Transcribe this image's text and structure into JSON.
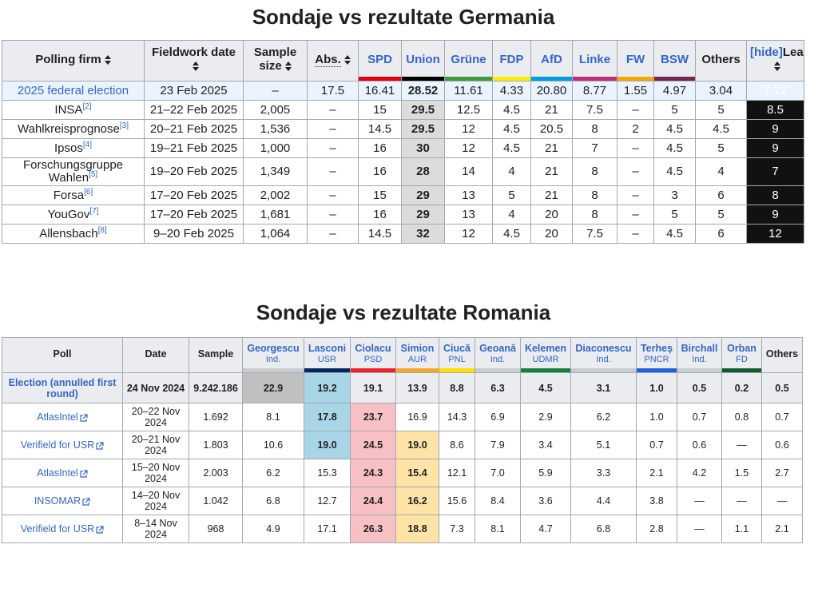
{
  "germany": {
    "title": "Sondaje vs rezultate Germania",
    "columns": [
      {
        "label": "Polling firm",
        "sortable": true
      },
      {
        "label": "Fieldwork date",
        "sortable": true
      },
      {
        "label": "Sample size",
        "sortable": true
      },
      {
        "label": "Abs.",
        "sortable": true
      },
      {
        "label": "SPD",
        "color": "#E3000F"
      },
      {
        "label": "Union",
        "color": "#000000"
      },
      {
        "label": "Grüne",
        "color": "#409A3C"
      },
      {
        "label": "FDP",
        "color": "#FFED00"
      },
      {
        "label": "AfD",
        "color": "#009EE0"
      },
      {
        "label": "Linke",
        "color": "#BE3075"
      },
      {
        "label": "FW",
        "color": "#F7A800"
      },
      {
        "label": "BSW",
        "color": "#792351"
      },
      {
        "label": "Others"
      },
      {
        "label": "Lead",
        "toggle": "[hide]",
        "sortable": true
      }
    ],
    "rows": [
      {
        "firm": "2025 federal election",
        "cells": [
          "23 Feb 2025",
          "–",
          "17.5",
          "16.41",
          "28.52",
          "11.61",
          "4.33",
          "20.80",
          "8.77",
          "1.55",
          "4.97",
          "3.04",
          "7.72"
        ]
      },
      {
        "firm": "INSA",
        "ref": "[2]",
        "cells": [
          "21–22 Feb 2025",
          "2,005",
          "–",
          "15",
          "29.5",
          "12.5",
          "4.5",
          "21",
          "7.5",
          "–",
          "5",
          "5",
          "8.5"
        ]
      },
      {
        "firm": "Wahlkreisprognose",
        "ref": "[3]",
        "cells": [
          "20–21 Feb 2025",
          "1,536",
          "–",
          "14.5",
          "29.5",
          "12",
          "4.5",
          "20.5",
          "8",
          "2",
          "4.5",
          "4.5",
          "9"
        ]
      },
      {
        "firm": "Ipsos",
        "ref": "[4]",
        "cells": [
          "19–21 Feb 2025",
          "1,000",
          "–",
          "16",
          "30",
          "12",
          "4.5",
          "21",
          "7",
          "–",
          "4.5",
          "5",
          "9"
        ]
      },
      {
        "firm": "Forschungsgruppe Wahlen",
        "ref": "[5]",
        "cells": [
          "19–20 Feb 2025",
          "1,349",
          "–",
          "16",
          "28",
          "14",
          "4",
          "21",
          "8",
          "–",
          "4.5",
          "4",
          "7"
        ]
      },
      {
        "firm": "Forsa",
        "ref": "[6]",
        "cells": [
          "17–20 Feb 2025",
          "2,002",
          "–",
          "15",
          "29",
          "13",
          "5",
          "21",
          "8",
          "–",
          "3",
          "6",
          "8"
        ]
      },
      {
        "firm": "YouGov",
        "ref": "[7]",
        "cells": [
          "17–20 Feb 2025",
          "1,681",
          "–",
          "16",
          "29",
          "13",
          "4",
          "20",
          "8",
          "–",
          "5",
          "5",
          "9"
        ]
      },
      {
        "firm": "Allensbach",
        "ref": "[8]",
        "cells": [
          "9–20 Feb 2025",
          "1,064",
          "–",
          "14.5",
          "32",
          "12",
          "4.5",
          "20",
          "7.5",
          "–",
          "4.5",
          "6",
          "12"
        ]
      }
    ]
  },
  "romania": {
    "title": "Sondaje vs rezultate Romania",
    "columns": [
      {
        "name": "Poll"
      },
      {
        "name": "Date"
      },
      {
        "name": "Sample"
      },
      {
        "name": "Georgescu",
        "party": "Ind.",
        "color": "#c8ccd1"
      },
      {
        "name": "Lasconi",
        "party": "USR",
        "color": "#00285e"
      },
      {
        "name": "Ciolacu",
        "party": "PSD",
        "color": "#ED2128"
      },
      {
        "name": "Simion",
        "party": "AUR",
        "color": "#F4A82A"
      },
      {
        "name": "Ciucă",
        "party": "PNL",
        "color": "#FFDD00"
      },
      {
        "name": "Geoană",
        "party": "Ind.",
        "color": "#c8ccd1"
      },
      {
        "name": "Kelemen",
        "party": "UDMR",
        "color": "#15803C"
      },
      {
        "name": "Diaconescu",
        "party": "Ind.",
        "color": "#c8ccd1"
      },
      {
        "name": "Terheș",
        "party": "PNCR",
        "color": "#1f5fe0"
      },
      {
        "name": "Birchall",
        "party": "Ind.",
        "color": "#c8ccd1"
      },
      {
        "name": "Orban",
        "party": "FD",
        "color": "#0d5c2b"
      },
      {
        "name": "Others"
      }
    ],
    "rows": [
      {
        "poll": "Election (annulled first round)",
        "cells": [
          "24 Nov 2024",
          "9.242.186",
          {
            "text": "22.9",
            "color": "#c0c0c0"
          },
          {
            "text": "19.2",
            "color": "#a9d6e6"
          },
          "19.1",
          "13.9",
          "8.8",
          "6.3",
          "4.5",
          "3.1",
          "1.0",
          "0.5",
          "0.2",
          "0.5"
        ]
      },
      {
        "poll": "AtlasIntel",
        "cells": [
          "20–22 Nov 2024",
          "1.692",
          "8.1",
          {
            "text": "17.8",
            "color": "#a9d6e6"
          },
          {
            "text": "23.7",
            "color": "#f6c0c4"
          },
          "16.9",
          "14.3",
          "6.9",
          "2.9",
          "6.2",
          "1.0",
          "0.7",
          "0.8",
          "0.7"
        ]
      },
      {
        "poll": "Verifield for USR",
        "cells": [
          "20–21 Nov 2024",
          "1.803",
          "10.6",
          {
            "text": "19.0",
            "color": "#a9d6e6"
          },
          {
            "text": "24.5",
            "color": "#f6c0c4"
          },
          {
            "text": "19.0",
            "color": "#fde3a5"
          },
          "8.6",
          "7.9",
          "3.4",
          "5.1",
          "0.7",
          "0.6",
          "—",
          "0.6"
        ]
      },
      {
        "poll": "AtlasIntel",
        "cells": [
          "15–20 Nov 2024",
          "2.003",
          "6.2",
          "15.3",
          {
            "text": "24.3",
            "color": "#f6c0c4"
          },
          {
            "text": "15.4",
            "color": "#fde3a5"
          },
          "12.1",
          "7.0",
          "5.9",
          "3.3",
          "2.1",
          "4.2",
          "1.5",
          "2.7"
        ]
      },
      {
        "poll": "INSOMAR",
        "cells": [
          "14–20 Nov 2024",
          "1.042",
          "6.8",
          "12.7",
          {
            "text": "24.4",
            "color": "#f6c0c4"
          },
          {
            "text": "16.2",
            "color": "#fde3a5"
          },
          "15.6",
          "8.4",
          "3.6",
          "4.4",
          "3.8",
          "—",
          "—",
          "—"
        ]
      },
      {
        "poll": "Verifield for USR",
        "cells": [
          "8–14 Nov 2024",
          "968",
          "4.9",
          "17.1",
          {
            "text": "26.3",
            "color": "#f6c0c4"
          },
          {
            "text": "18.8",
            "color": "#fde3a5"
          },
          "7.3",
          "8.1",
          "4.7",
          "6.8",
          "2.8",
          "—",
          "1.1",
          "2.1"
        ]
      }
    ]
  }
}
